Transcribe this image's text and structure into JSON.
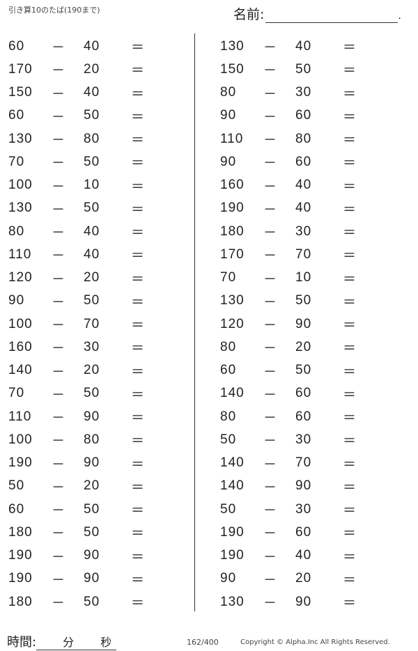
{
  "header": {
    "title": "引き算10のたば(190まで)",
    "name_label": "名前:",
    "name_end": "."
  },
  "problems_left": [
    [
      "60",
      "40"
    ],
    [
      "170",
      "20"
    ],
    [
      "150",
      "40"
    ],
    [
      "60",
      "50"
    ],
    [
      "130",
      "80"
    ],
    [
      "70",
      "50"
    ],
    [
      "100",
      "10"
    ],
    [
      "130",
      "50"
    ],
    [
      "80",
      "40"
    ],
    [
      "110",
      "40"
    ],
    [
      "120",
      "20"
    ],
    [
      "90",
      "50"
    ],
    [
      "100",
      "70"
    ],
    [
      "160",
      "30"
    ],
    [
      "140",
      "20"
    ],
    [
      "70",
      "50"
    ],
    [
      "110",
      "90"
    ],
    [
      "100",
      "80"
    ],
    [
      "190",
      "90"
    ],
    [
      "50",
      "20"
    ],
    [
      "60",
      "50"
    ],
    [
      "180",
      "50"
    ],
    [
      "190",
      "90"
    ],
    [
      "190",
      "90"
    ],
    [
      "180",
      "50"
    ]
  ],
  "problems_right": [
    [
      "130",
      "40"
    ],
    [
      "150",
      "50"
    ],
    [
      "80",
      "30"
    ],
    [
      "90",
      "60"
    ],
    [
      "110",
      "80"
    ],
    [
      "90",
      "60"
    ],
    [
      "160",
      "40"
    ],
    [
      "190",
      "40"
    ],
    [
      "180",
      "30"
    ],
    [
      "170",
      "70"
    ],
    [
      "70",
      "10"
    ],
    [
      "130",
      "50"
    ],
    [
      "120",
      "90"
    ],
    [
      "80",
      "20"
    ],
    [
      "60",
      "50"
    ],
    [
      "140",
      "60"
    ],
    [
      "80",
      "60"
    ],
    [
      "50",
      "30"
    ],
    [
      "140",
      "70"
    ],
    [
      "140",
      "90"
    ],
    [
      "50",
      "30"
    ],
    [
      "190",
      "60"
    ],
    [
      "190",
      "40"
    ],
    [
      "90",
      "20"
    ],
    [
      "130",
      "90"
    ]
  ],
  "operator": "－",
  "equals": "＝",
  "footer": {
    "time_label": "時間:",
    "minutes": "分",
    "seconds": "秒",
    "page": "162/400",
    "copyright": "Copyright ©  Alpha.Inc All Rights Reserved."
  }
}
